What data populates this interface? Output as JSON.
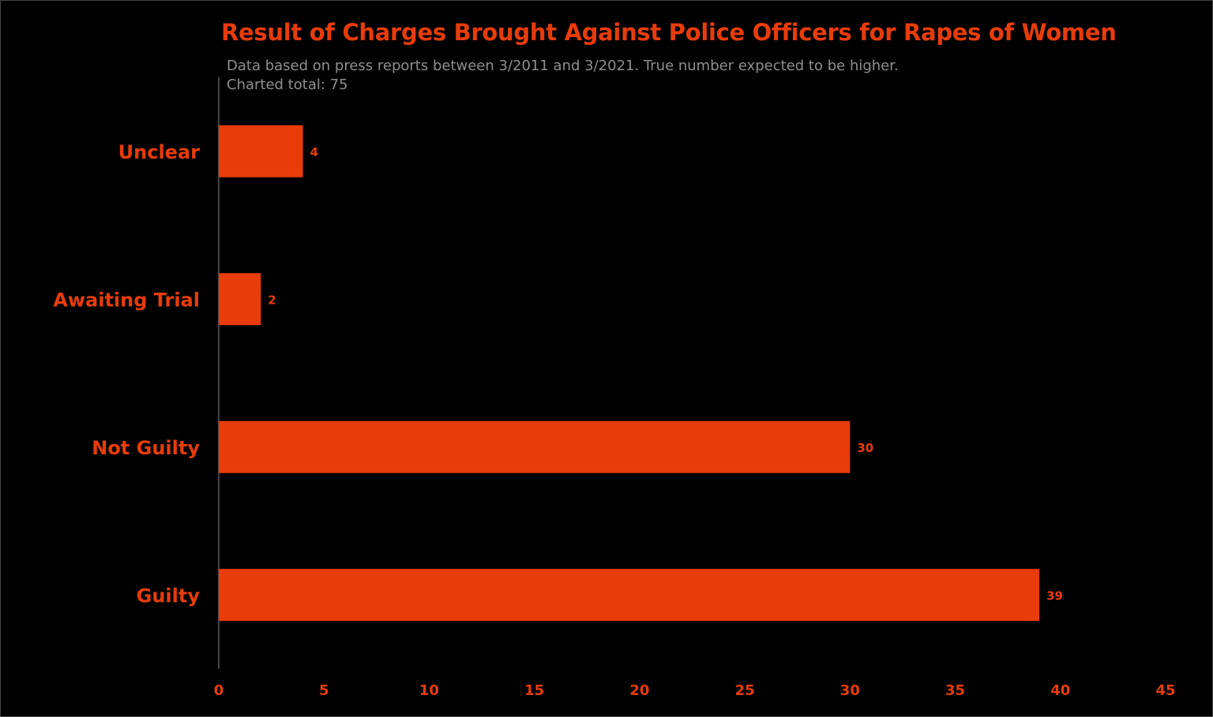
{
  "chart_data": {
    "type": "bar",
    "orientation": "horizontal",
    "title": "Result of Charges Brought Against Police Officers for Rapes of Women",
    "subtitle_lines": [
      "Data based on press reports between 3/2011 and 3/2021. True number expected to be higher.",
      "Charted total: 75"
    ],
    "categories": [
      "Unclear",
      "Awaiting Trial",
      "Not Guilty",
      "Guilty"
    ],
    "values": [
      4,
      2,
      30,
      39
    ],
    "data_labels": [
      "4",
      "2",
      "30",
      "39"
    ],
    "xlim": [
      0,
      45
    ],
    "xticks": [
      0,
      5,
      10,
      15,
      20,
      25,
      30,
      35,
      40,
      45
    ],
    "xtick_labels": [
      "0",
      "5",
      "10",
      "15",
      "20",
      "25",
      "30",
      "35",
      "40",
      "45"
    ],
    "grid": false,
    "legend": "none",
    "colors": {
      "bar": "#e83c0a",
      "text": "#e83c0a",
      "subtitle": "#8f8f8f",
      "background": "#000000",
      "axis": "#888888"
    }
  }
}
